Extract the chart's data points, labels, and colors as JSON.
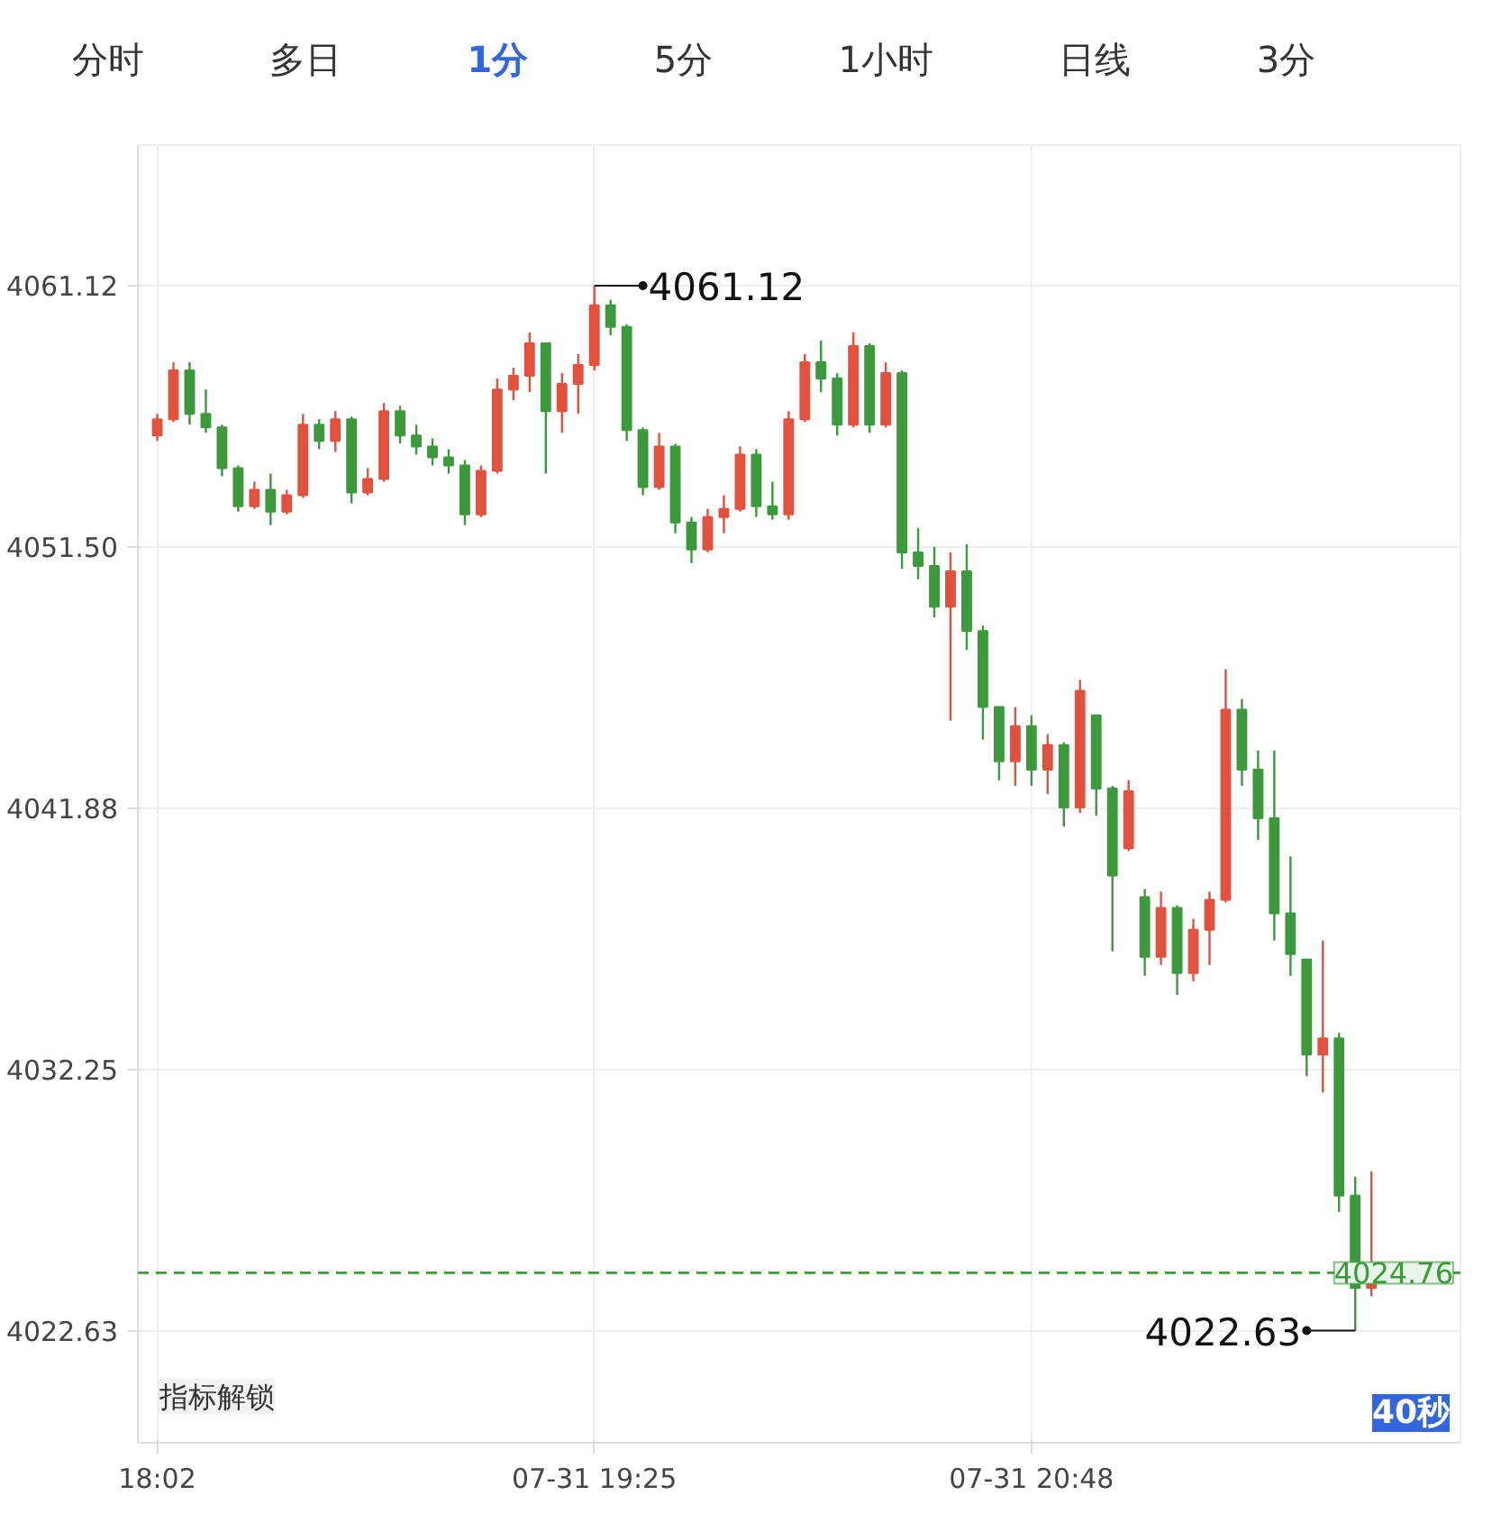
{
  "chart_data": {
    "type": "candlestick",
    "categories": [
      "18:02",
      null,
      null,
      null,
      null,
      null,
      null,
      null,
      null,
      null,
      null,
      null,
      null,
      null,
      null,
      null,
      null,
      null,
      null,
      null,
      null,
      null,
      null,
      null,
      null,
      null,
      null,
      "07-31 19:25",
      null,
      null,
      null,
      null,
      null,
      null,
      null,
      null,
      null,
      null,
      null,
      null,
      null,
      null,
      null,
      null,
      null,
      null,
      null,
      null,
      null,
      null,
      null,
      null,
      null,
      null,
      "07-31 20:48",
      null,
      null,
      null,
      null,
      null,
      null,
      null,
      null,
      null,
      null,
      null,
      null,
      null,
      null,
      null,
      null,
      null,
      null,
      null,
      null,
      null
    ],
    "ohlc": [
      [
        4055.6,
        4056.4,
        4055.4,
        4056.2
      ],
      [
        4056.2,
        4058.3,
        4056.1,
        4058.0
      ],
      [
        4058.0,
        4058.3,
        4056.0,
        4056.4
      ],
      [
        4056.4,
        4057.3,
        4055.7,
        4055.9
      ],
      [
        4055.9,
        4056.0,
        4054.1,
        4054.4
      ],
      [
        4054.4,
        4054.5,
        4052.8,
        4053.0
      ],
      [
        4053.0,
        4053.9,
        4052.9,
        4053.6
      ],
      [
        4053.6,
        4054.2,
        4052.3,
        4052.8
      ],
      [
        4052.8,
        4053.6,
        4052.7,
        4053.4
      ],
      [
        4053.4,
        4056.4,
        4053.3,
        4056.0
      ],
      [
        4056.0,
        4056.2,
        4055.1,
        4055.4
      ],
      [
        4055.4,
        4056.5,
        4055.0,
        4056.2
      ],
      [
        4056.2,
        4056.3,
        4053.1,
        4053.5
      ],
      [
        4053.5,
        4054.4,
        4053.4,
        4054.0
      ],
      [
        4054.0,
        4056.8,
        4053.9,
        4056.5
      ],
      [
        4056.5,
        4056.7,
        4055.3,
        4055.6
      ],
      [
        4055.6,
        4056.0,
        4054.9,
        4055.2
      ],
      [
        4055.2,
        4055.5,
        4054.5,
        4054.8
      ],
      [
        4054.8,
        4055.1,
        4054.2,
        4054.5
      ],
      [
        4054.5,
        4054.7,
        4052.3,
        4052.7
      ],
      [
        4052.7,
        4054.5,
        4052.6,
        4054.3
      ],
      [
        4054.3,
        4057.7,
        4054.2,
        4057.3
      ],
      [
        4057.3,
        4058.1,
        4056.9,
        4057.8
      ],
      [
        4057.8,
        4059.4,
        4057.2,
        4059.0
      ],
      [
        4059.0,
        4059.0,
        4054.2,
        4056.5
      ],
      [
        4056.5,
        4057.9,
        4055.7,
        4057.5
      ],
      [
        4057.5,
        4058.6,
        4056.4,
        4058.2
      ],
      [
        4058.2,
        4061.12,
        4058.0,
        4060.4
      ],
      [
        4060.4,
        4060.6,
        4059.3,
        4059.6
      ],
      [
        4059.6,
        4059.7,
        4055.4,
        4055.8
      ],
      [
        4055.8,
        4055.9,
        4053.4,
        4053.7
      ],
      [
        4053.7,
        4055.7,
        4053.6,
        4055.2
      ],
      [
        4055.2,
        4055.3,
        4052.0,
        4052.4
      ],
      [
        4052.4,
        4052.6,
        4050.9,
        4051.4
      ],
      [
        4051.4,
        4052.9,
        4051.3,
        4052.6
      ],
      [
        4052.6,
        4053.4,
        4052.0,
        4052.9
      ],
      [
        4052.9,
        4055.2,
        4052.8,
        4054.9
      ],
      [
        4054.9,
        4055.1,
        4052.6,
        4053.0
      ],
      [
        4053.0,
        4053.9,
        4052.5,
        4052.7
      ],
      [
        4052.7,
        4056.5,
        4052.5,
        4056.2
      ],
      [
        4056.2,
        4058.6,
        4056.1,
        4058.3
      ],
      [
        4058.3,
        4059.1,
        4057.2,
        4057.7
      ],
      [
        4057.7,
        4057.9,
        4055.6,
        4056.0
      ],
      [
        4056.0,
        4059.4,
        4055.9,
        4058.9
      ],
      [
        4058.9,
        4059.0,
        4055.7,
        4056.0
      ],
      [
        4056.0,
        4058.3,
        4055.9,
        4057.9
      ],
      [
        4057.9,
        4058.0,
        4050.7,
        4051.3
      ],
      [
        4051.3,
        4052.2,
        4050.3,
        4050.8
      ],
      [
        4050.8,
        4051.5,
        4048.9,
        4049.3
      ],
      [
        4049.3,
        4051.3,
        4045.1,
        4050.6
      ],
      [
        4050.6,
        4051.6,
        4047.7,
        4048.4
      ],
      [
        4048.4,
        4048.6,
        4044.4,
        4045.6
      ],
      [
        4045.6,
        4045.6,
        4042.9,
        4043.6
      ],
      [
        4043.6,
        4045.6,
        4042.7,
        4044.9
      ],
      [
        4044.9,
        4045.3,
        4042.7,
        4043.3
      ],
      [
        4043.3,
        4044.6,
        4042.4,
        4044.2
      ],
      [
        4044.2,
        4044.3,
        4041.2,
        4041.9
      ],
      [
        4041.9,
        4046.6,
        4041.7,
        4046.2
      ],
      [
        4045.3,
        4045.3,
        4041.6,
        4042.6
      ],
      [
        4042.6,
        4042.7,
        4036.6,
        4039.4
      ],
      [
        4040.4,
        4042.9,
        4040.3,
        4042.5
      ],
      [
        4038.6,
        4038.9,
        4035.7,
        4036.4
      ],
      [
        4036.4,
        4038.8,
        4036.1,
        4038.2
      ],
      [
        4038.2,
        4038.3,
        4035.0,
        4035.8
      ],
      [
        4035.8,
        4037.8,
        4035.5,
        4037.4
      ],
      [
        4037.4,
        4038.8,
        4036.1,
        4038.5
      ],
      [
        4038.5,
        4047.0,
        4038.4,
        4045.5
      ],
      [
        4045.5,
        4045.9,
        4042.7,
        4043.3
      ],
      [
        4043.3,
        4044.0,
        4040.7,
        4041.5
      ],
      [
        4041.5,
        4044.0,
        4037.0,
        4038.0
      ],
      [
        4038.0,
        4040.1,
        4035.7,
        4036.5
      ],
      [
        4036.3,
        4036.3,
        4032.0,
        4032.8
      ],
      [
        4032.8,
        4037.0,
        4031.4,
        4033.4
      ],
      [
        4033.4,
        4033.6,
        4027.0,
        4027.6
      ],
      [
        4027.6,
        4028.3,
        4022.63,
        4024.2
      ],
      [
        4024.2,
        4028.5,
        4023.9,
        4024.76
      ]
    ],
    "colors": [
      "#e0523e",
      "#e0523e",
      "#3c9a3c",
      "#3c9a3c",
      "#3c9a3c",
      "#3c9a3c",
      "#e0523e",
      "#3c9a3c",
      "#e0523e",
      "#e0523e",
      "#3c9a3c",
      "#e0523e",
      "#3c9a3c",
      "#e0523e",
      "#e0523e",
      "#3c9a3c",
      "#3c9a3c",
      "#3c9a3c",
      "#3c9a3c",
      "#3c9a3c",
      "#e0523e",
      "#e0523e",
      "#e0523e",
      "#e0523e",
      "#3c9a3c",
      "#e0523e",
      "#e0523e",
      "#e0523e",
      "#3c9a3c",
      "#3c9a3c",
      "#3c9a3c",
      "#e0523e",
      "#3c9a3c",
      "#3c9a3c",
      "#e0523e",
      "#e0523e",
      "#e0523e",
      "#3c9a3c",
      "#3c9a3c",
      "#e0523e",
      "#e0523e",
      "#3c9a3c",
      "#3c9a3c",
      "#e0523e",
      "#3c9a3c",
      "#e0523e",
      "#3c9a3c",
      "#3c9a3c",
      "#3c9a3c",
      "#e0523e",
      "#3c9a3c",
      "#3c9a3c",
      "#3c9a3c",
      "#e0523e",
      "#3c9a3c",
      "#e0523e",
      "#3c9a3c",
      "#e0523e",
      "#3c9a3c",
      "#3c9a3c",
      "#e0523e",
      "#3c9a3c",
      "#e0523e",
      "#3c9a3c",
      "#e0523e",
      "#e0523e",
      "#e0523e",
      "#3c9a3c",
      "#3c9a3c",
      "#3c9a3c",
      "#3c9a3c",
      "#3c9a3c",
      "#e0523e",
      "#3c9a3c",
      "#3c9a3c",
      "#e0523e"
    ],
    "ylim": [
      4018.5,
      4066.3
    ],
    "yticks": [
      4022.63,
      4032.25,
      4041.88,
      {
        "value": 4051.5,
        "label": "4051.50"
      },
      4061.12
    ],
    "grid": true,
    "ref_lines": [
      {
        "axis": "y",
        "value": 4024.76,
        "label": "4024.76",
        "color": "#3c9a3c",
        "line_style": "dashed"
      }
    ],
    "annotations": [
      "4061.12",
      "4022.63",
      "分时",
      "多日",
      "1分",
      "5分",
      "1小时",
      "日线",
      "3分",
      "指标解锁",
      "40秒"
    ]
  }
}
